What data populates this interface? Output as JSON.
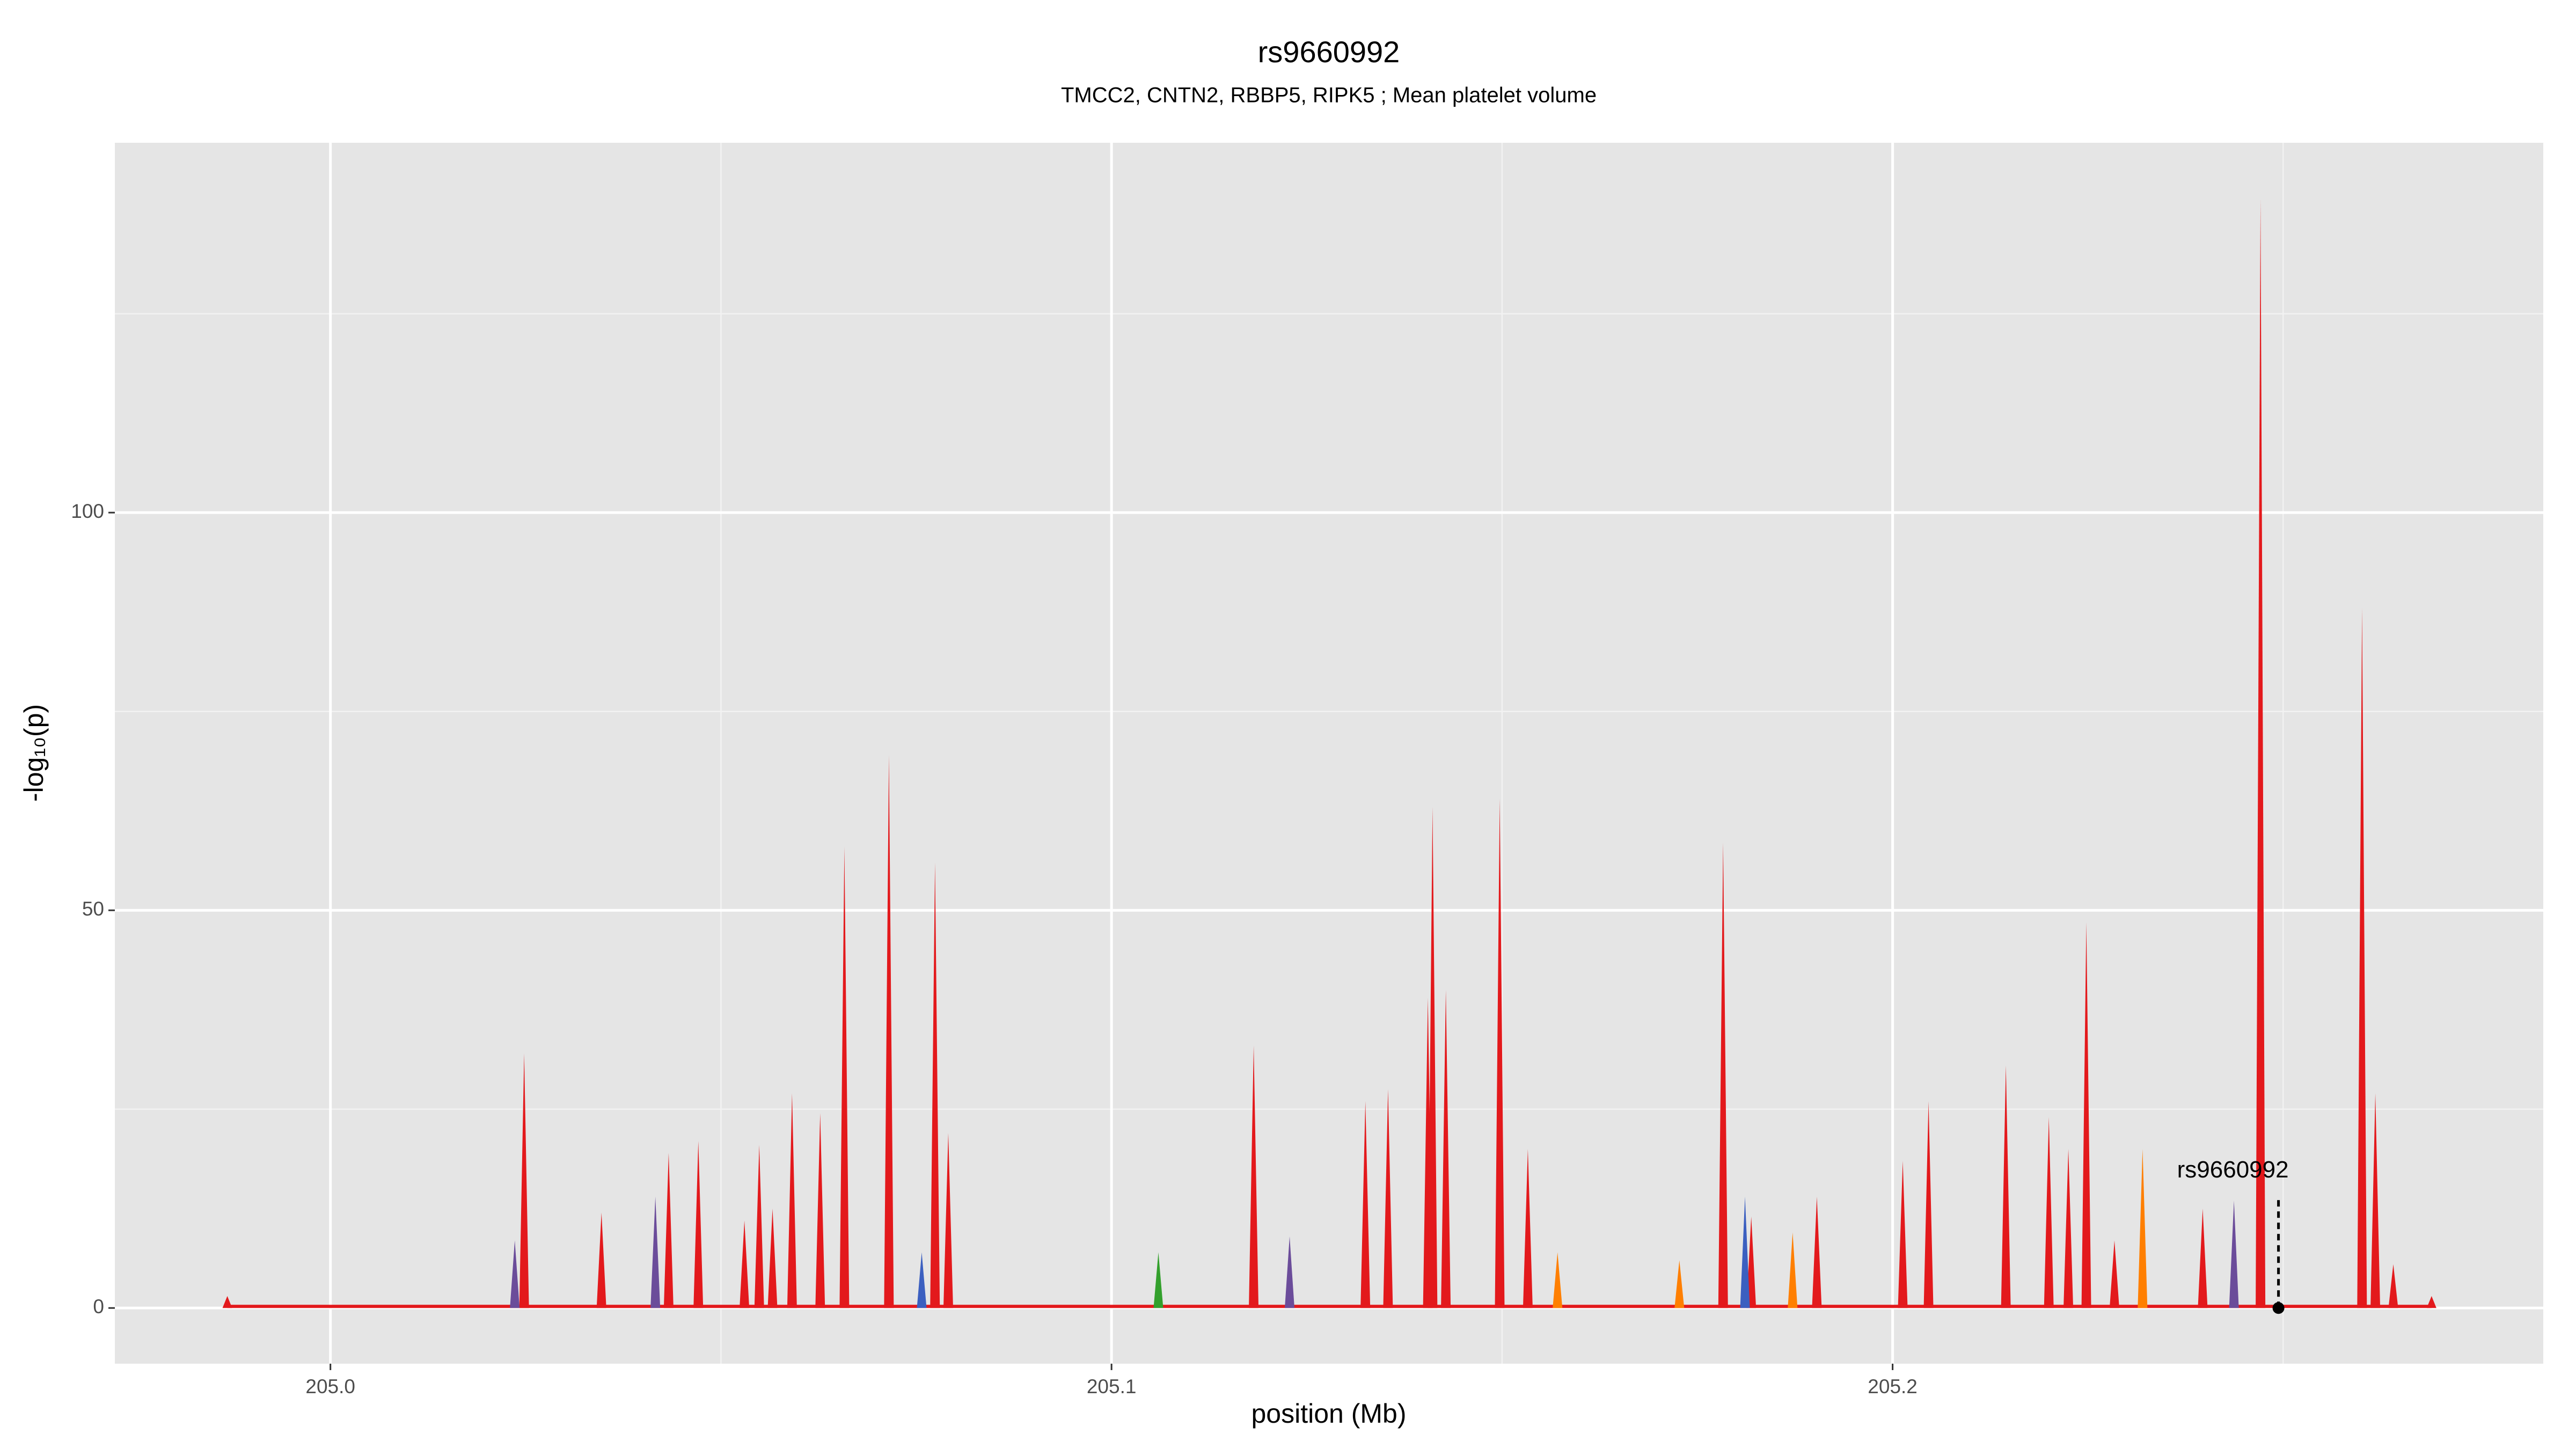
{
  "chart_data": {
    "type": "spike",
    "title": "rs9660992",
    "subtitle": "TMCC2, CNTN2, RBBP5, RIPK5 ; Mean platelet volume",
    "x_label": "position (Mb)",
    "y_label": "-log₁₀(p)",
    "xlim": [
      204.9724,
      205.2833
    ],
    "ylim": [
      -7.0,
      146.5
    ],
    "xticks": [
      {
        "value": 205.0,
        "label": "205.0"
      },
      205.1,
      205.2
    ],
    "yticks": [
      0,
      50,
      100
    ],
    "x_minor_grid": [
      205.05,
      205.15,
      205.25
    ],
    "y_minor_grid": [
      25,
      75,
      125
    ],
    "grid": true,
    "series": [
      {
        "color": "#e3191c",
        "x": [
          204.9868,
          205.0248,
          205.0347,
          205.0433,
          205.0471,
          205.053,
          205.0549,
          205.0566,
          205.0591,
          205.0627,
          205.0658,
          205.0715,
          205.0774,
          205.0791,
          205.1182,
          205.1325,
          205.1354,
          205.1405,
          205.1411,
          205.1428,
          205.1497,
          205.1533,
          205.1783,
          205.1819,
          205.1903,
          205.2013,
          205.2046,
          205.2145,
          205.22,
          205.2225,
          205.2248,
          205.2284,
          205.2397,
          205.2471,
          205.2601,
          205.2618,
          205.2641,
          205.269
        ],
        "values": [
          1.5,
          32,
          12,
          19.5,
          21,
          11,
          20.5,
          12.5,
          27,
          24.5,
          58,
          69.5,
          56,
          22,
          33,
          26,
          27.5,
          39,
          63,
          40,
          64,
          20,
          58.5,
          11.5,
          14,
          18.5,
          26,
          30.5,
          24,
          20,
          48.5,
          8.5,
          12.5,
          139.5,
          88,
          27,
          5.5,
          1.5
        ]
      },
      {
        "color": "#6b4c9a",
        "x": [
          205.0236,
          205.0416,
          205.1228,
          205.2437
        ],
        "values": [
          8.5,
          14,
          9,
          13.5
        ]
      },
      {
        "color": "#3b5fc0",
        "x": [
          205.0757,
          205.1811
        ],
        "values": [
          7,
          14
        ]
      },
      {
        "color": "#ff7f00",
        "x": [
          205.1571,
          205.1727,
          205.1872,
          205.232
        ],
        "values": [
          7,
          6,
          9.5,
          20
        ]
      },
      {
        "color": "#33a02c",
        "x": [
          205.106
        ],
        "values": [
          7
        ]
      }
    ],
    "highlight": {
      "label": "rs9660992",
      "x": 205.2494,
      "y": 0
    }
  }
}
